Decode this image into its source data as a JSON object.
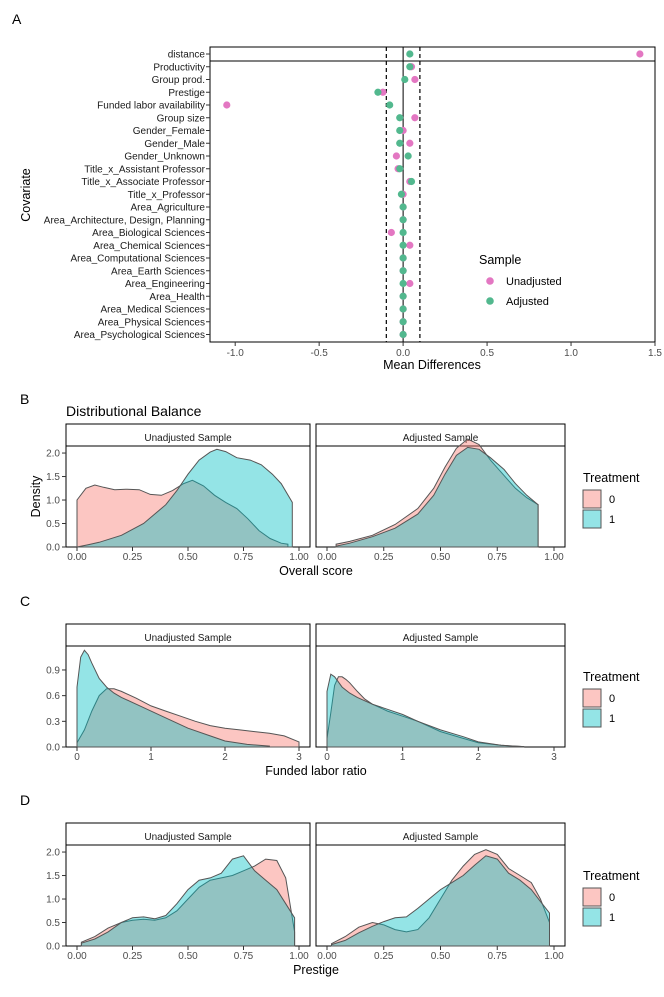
{
  "chart_data": [
    {
      "panel": "A",
      "type": "scatter",
      "xlabel": "Mean Differences",
      "ylabel": "Covariate",
      "xlim": [
        -1.15,
        1.5
      ],
      "xticks": [
        "-1.0",
        "-0.5",
        "0.0",
        "0.5",
        "1.0",
        "1.5"
      ],
      "xtick_values": [
        -1.0,
        -0.5,
        0.0,
        0.5,
        1.0,
        1.5
      ],
      "threshold_lines": [
        -0.1,
        0.1
      ],
      "legend": {
        "title": "Sample",
        "items": [
          "Unadjusted",
          "Adjusted"
        ],
        "colors": [
          "#e377c2",
          "#52b88e"
        ]
      },
      "covariates": [
        "distance",
        "Productivity",
        "Group prod.",
        "Prestige",
        "Funded labor availability",
        "Group size",
        "Gender_Female",
        "Gender_Male",
        "Gender_Unknown",
        "Title_x_Assistant Professor",
        "Title_x_Associate Professor",
        "Title_x_Professor",
        "Area_Agriculture",
        "Area_Architecture, Design, Planning",
        "Area_Biological Sciences",
        "Area_Chemical Sciences",
        "Area_Computational Sciences",
        "Area_Earth Sciences",
        "Area_Engineering",
        "Area_Health",
        "Area_Medical Sciences",
        "Area_Physical Sciences",
        "Area_Psychological Sciences"
      ],
      "unadjusted": [
        1.41,
        0.05,
        0.07,
        -0.12,
        -1.05,
        0.07,
        0.0,
        0.04,
        -0.04,
        -0.03,
        0.04,
        0.0,
        0.0,
        0.0,
        -0.07,
        0.04,
        0.0,
        0.0,
        0.04,
        0.0,
        0.0,
        0.0,
        0.0
      ],
      "adjusted": [
        0.04,
        0.04,
        0.01,
        -0.15,
        -0.08,
        -0.02,
        -0.02,
        -0.02,
        0.03,
        -0.02,
        0.05,
        -0.01,
        0.0,
        0.0,
        0.0,
        0.0,
        0.0,
        0.0,
        0.0,
        0.0,
        0.0,
        0.0,
        0.0
      ]
    },
    {
      "panel": "B",
      "type": "area",
      "title": "Distributional Balance",
      "xlabel": "Overall score",
      "ylabel": "Density",
      "xlim": [
        0,
        1
      ],
      "ylim": [
        0,
        2.15
      ],
      "xticks": [
        "0.00",
        "0.25",
        "0.50",
        "0.75",
        "1.00"
      ],
      "xtick_values": [
        0,
        0.25,
        0.5,
        0.75,
        1.0
      ],
      "yticks": [
        "0.0",
        "0.5",
        "1.0",
        "1.5",
        "2.0"
      ],
      "ytick_values": [
        0,
        0.5,
        1.0,
        1.5,
        2.0
      ],
      "legend": {
        "title": "Treatment",
        "items": [
          "0",
          "1"
        ]
      },
      "facets": [
        {
          "label": "Unadjusted Sample",
          "series": [
            {
              "name": "0",
              "x": [
                0,
                0.04,
                0.08,
                0.12,
                0.17,
                0.22,
                0.28,
                0.33,
                0.38,
                0.43,
                0.48,
                0.52,
                0.57,
                0.62,
                0.67,
                0.72,
                0.77,
                0.82,
                0.87,
                0.92,
                0.95
              ],
              "y": [
                1.0,
                1.25,
                1.32,
                1.27,
                1.22,
                1.23,
                1.22,
                1.12,
                1.1,
                1.2,
                1.35,
                1.42,
                1.3,
                1.1,
                0.95,
                0.82,
                0.6,
                0.35,
                0.18,
                0.08,
                0.06
              ]
            },
            {
              "name": "1",
              "x": [
                0,
                0.05,
                0.1,
                0.2,
                0.3,
                0.4,
                0.45,
                0.5,
                0.55,
                0.6,
                0.63,
                0.67,
                0.72,
                0.78,
                0.83,
                0.88,
                0.92,
                0.97
              ],
              "y": [
                0,
                0.05,
                0.1,
                0.25,
                0.5,
                0.9,
                1.2,
                1.55,
                1.85,
                2.02,
                2.08,
                2.03,
                1.9,
                1.85,
                1.75,
                1.55,
                1.35,
                0.95
              ]
            }
          ]
        },
        {
          "label": "Adjusted Sample",
          "series": [
            {
              "name": "0",
              "x": [
                0.04,
                0.1,
                0.2,
                0.3,
                0.4,
                0.47,
                0.52,
                0.57,
                0.62,
                0.67,
                0.72,
                0.78,
                0.83,
                0.88,
                0.93
              ],
              "y": [
                0.06,
                0.12,
                0.25,
                0.48,
                0.82,
                1.25,
                1.7,
                2.1,
                2.3,
                2.18,
                1.85,
                1.52,
                1.25,
                1.05,
                0.9
              ]
            },
            {
              "name": "1",
              "x": [
                0.04,
                0.1,
                0.2,
                0.3,
                0.4,
                0.47,
                0.52,
                0.57,
                0.62,
                0.67,
                0.72,
                0.78,
                0.83,
                0.88,
                0.93
              ],
              "y": [
                0.02,
                0.08,
                0.22,
                0.4,
                0.7,
                1.1,
                1.55,
                1.95,
                2.12,
                2.08,
                1.9,
                1.65,
                1.35,
                1.1,
                0.9
              ]
            }
          ]
        }
      ]
    },
    {
      "panel": "C",
      "type": "area",
      "xlabel": "Funded labor ratio",
      "ylabel": "",
      "xlim": [
        0,
        3
      ],
      "ylim": [
        0,
        1.18
      ],
      "xticks": [
        "0",
        "1",
        "2",
        "3"
      ],
      "xtick_values": [
        0,
        1,
        2,
        3
      ],
      "yticks": [
        "0.0",
        "0.3",
        "0.6",
        "0.9"
      ],
      "ytick_values": [
        0,
        0.3,
        0.6,
        0.9
      ],
      "legend": {
        "title": "Treatment",
        "items": [
          "0",
          "1"
        ]
      },
      "facets": [
        {
          "label": "Unadjusted Sample",
          "series": [
            {
              "name": "0",
              "x": [
                0,
                0.1,
                0.2,
                0.3,
                0.4,
                0.5,
                0.6,
                0.8,
                1.0,
                1.2,
                1.4,
                1.6,
                1.8,
                2.0,
                2.2,
                2.4,
                2.6,
                2.8,
                3.0
              ],
              "y": [
                0.05,
                0.2,
                0.42,
                0.6,
                0.68,
                0.68,
                0.65,
                0.57,
                0.48,
                0.42,
                0.36,
                0.3,
                0.25,
                0.22,
                0.2,
                0.18,
                0.16,
                0.13,
                0.06
              ]
            },
            {
              "name": "1",
              "x": [
                0,
                0.05,
                0.1,
                0.15,
                0.2,
                0.3,
                0.4,
                0.5,
                0.6,
                0.8,
                1.0,
                1.2,
                1.5,
                1.8,
                2.0,
                2.3,
                2.6
              ],
              "y": [
                0.7,
                1.05,
                1.13,
                1.08,
                0.98,
                0.8,
                0.7,
                0.63,
                0.58,
                0.5,
                0.42,
                0.34,
                0.22,
                0.13,
                0.07,
                0.03,
                0.01
              ]
            }
          ]
        },
        {
          "label": "Adjusted Sample",
          "series": [
            {
              "name": "0",
              "x": [
                0,
                0.05,
                0.1,
                0.15,
                0.2,
                0.25,
                0.3,
                0.4,
                0.5,
                0.6,
                0.8,
                1.0,
                1.2,
                1.5,
                1.8,
                2.0,
                2.3,
                2.6
              ],
              "y": [
                0.1,
                0.4,
                0.72,
                0.82,
                0.82,
                0.79,
                0.75,
                0.65,
                0.56,
                0.5,
                0.42,
                0.36,
                0.3,
                0.18,
                0.1,
                0.05,
                0.02,
                0.005
              ]
            },
            {
              "name": "1",
              "x": [
                0,
                0.05,
                0.1,
                0.15,
                0.2,
                0.3,
                0.4,
                0.5,
                0.6,
                0.8,
                1.0,
                1.2,
                1.5,
                1.8,
                2.0,
                2.3,
                2.6
              ],
              "y": [
                0.65,
                0.85,
                0.82,
                0.76,
                0.7,
                0.63,
                0.58,
                0.54,
                0.5,
                0.44,
                0.38,
                0.3,
                0.2,
                0.12,
                0.06,
                0.02,
                0.005
              ]
            }
          ]
        }
      ]
    },
    {
      "panel": "D",
      "type": "area",
      "xlabel": "Prestige",
      "ylabel": "",
      "xlim": [
        0,
        1
      ],
      "ylim": [
        0,
        2.15
      ],
      "xticks": [
        "0.00",
        "0.25",
        "0.50",
        "0.75",
        "1.00"
      ],
      "xtick_values": [
        0,
        0.25,
        0.5,
        0.75,
        1.0
      ],
      "yticks": [
        "0.0",
        "0.5",
        "1.0",
        "1.5",
        "2.0"
      ],
      "ytick_values": [
        0,
        0.5,
        1.0,
        1.5,
        2.0
      ],
      "legend": {
        "title": "Treatment",
        "items": [
          "0",
          "1"
        ]
      },
      "facets": [
        {
          "label": "Unadjusted Sample",
          "series": [
            {
              "name": "0",
              "x": [
                0.02,
                0.08,
                0.14,
                0.2,
                0.25,
                0.3,
                0.35,
                0.4,
                0.45,
                0.5,
                0.55,
                0.6,
                0.65,
                0.7,
                0.75,
                0.8,
                0.85,
                0.9,
                0.94,
                0.98
              ],
              "y": [
                0.08,
                0.2,
                0.38,
                0.5,
                0.55,
                0.57,
                0.55,
                0.6,
                0.75,
                1.0,
                1.25,
                1.4,
                1.45,
                1.5,
                1.6,
                1.7,
                1.85,
                1.82,
                1.45,
                0.3
              ]
            },
            {
              "name": "1",
              "x": [
                0.02,
                0.08,
                0.14,
                0.2,
                0.25,
                0.3,
                0.35,
                0.4,
                0.45,
                0.5,
                0.55,
                0.6,
                0.65,
                0.7,
                0.75,
                0.8,
                0.85,
                0.9,
                0.94,
                0.98
              ],
              "y": [
                0.06,
                0.15,
                0.3,
                0.5,
                0.6,
                0.62,
                0.58,
                0.65,
                0.9,
                1.2,
                1.4,
                1.45,
                1.55,
                1.85,
                1.92,
                1.6,
                1.4,
                1.2,
                0.9,
                0.6
              ]
            }
          ]
        },
        {
          "label": "Adjusted Sample",
          "series": [
            {
              "name": "0",
              "x": [
                0.02,
                0.08,
                0.14,
                0.2,
                0.25,
                0.3,
                0.35,
                0.4,
                0.45,
                0.5,
                0.55,
                0.6,
                0.65,
                0.7,
                0.75,
                0.8,
                0.85,
                0.9,
                0.94,
                0.98
              ],
              "y": [
                0.05,
                0.2,
                0.4,
                0.5,
                0.45,
                0.35,
                0.3,
                0.35,
                0.6,
                1.0,
                1.4,
                1.7,
                1.95,
                2.05,
                1.95,
                1.65,
                1.5,
                1.35,
                1.0,
                0.5
              ]
            },
            {
              "name": "1",
              "x": [
                0.02,
                0.08,
                0.14,
                0.2,
                0.25,
                0.3,
                0.35,
                0.4,
                0.45,
                0.5,
                0.55,
                0.6,
                0.65,
                0.7,
                0.75,
                0.8,
                0.85,
                0.9,
                0.94,
                0.98
              ],
              "y": [
                0.03,
                0.12,
                0.28,
                0.42,
                0.52,
                0.6,
                0.62,
                0.8,
                1.0,
                1.2,
                1.35,
                1.5,
                1.72,
                1.92,
                1.85,
                1.55,
                1.4,
                1.2,
                0.95,
                0.7
              ]
            }
          ]
        }
      ]
    }
  ],
  "panel_labels": [
    "A",
    "B",
    "C",
    "D"
  ],
  "colors": {
    "fill0": "#f8766d",
    "fill1": "#00bfc4",
    "unadjusted": "#e377c2",
    "adjusted": "#52b88e"
  }
}
